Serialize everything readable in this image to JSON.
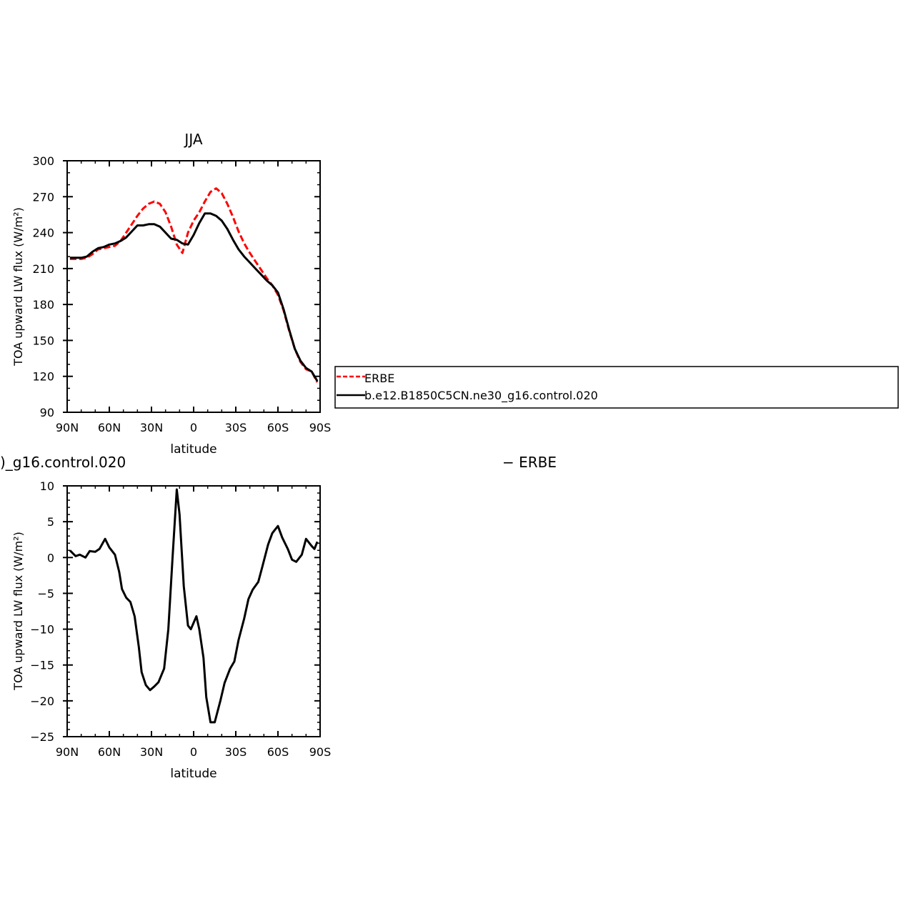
{
  "chart_data": [
    {
      "type": "line",
      "title": "JJA",
      "xlabel": "latitude",
      "ylabel": "TOA upward LW flux (W/m²)",
      "xlim": [
        -90,
        90
      ],
      "ylim": [
        90,
        300
      ],
      "xticks": [
        {
          "value": -90,
          "label": "90N"
        },
        {
          "value": -60,
          "label": "60N"
        },
        {
          "value": -30,
          "label": "30N"
        },
        {
          "value": 0,
          "label": "0"
        },
        {
          "value": 30,
          "label": "30S"
        },
        {
          "value": 60,
          "label": "60S"
        },
        {
          "value": 90,
          "label": "90S"
        }
      ],
      "yticks": [
        90,
        120,
        150,
        180,
        210,
        240,
        270,
        300
      ],
      "legend": {
        "placement": "right, outside plot",
        "entries": [
          "ERBE",
          "b.e12.B1850C5CN.ne30_g16.control.020"
        ]
      },
      "series": [
        {
          "name": "ERBE",
          "color": "#ff0000",
          "style": "dashed",
          "x": [
            -88,
            -84,
            -80,
            -76,
            -72,
            -68,
            -64,
            -60,
            -56,
            -52,
            -48,
            -44,
            -40,
            -36,
            -32,
            -28,
            -24,
            -20,
            -16,
            -12,
            -8,
            -4,
            0,
            4,
            8,
            12,
            16,
            20,
            24,
            28,
            32,
            36,
            40,
            44,
            48,
            52,
            56,
            60,
            64,
            68,
            72,
            76,
            80,
            84,
            88
          ],
          "values": [
            218,
            218,
            218,
            219,
            222,
            226,
            227,
            228,
            229,
            233,
            240,
            247,
            254,
            260,
            264,
            266,
            264,
            257,
            245,
            230,
            223,
            240,
            250,
            257,
            266,
            274,
            277,
            273,
            264,
            253,
            241,
            231,
            223,
            216,
            209,
            202,
            196,
            188,
            175,
            158,
            143,
            132,
            126,
            124,
            115
          ]
        },
        {
          "name": "b.e12.B1850C5CN.ne30_g16.control.020",
          "color": "#000000",
          "style": "solid",
          "x": [
            -88,
            -84,
            -80,
            -76,
            -72,
            -68,
            -64,
            -60,
            -56,
            -52,
            -48,
            -44,
            -40,
            -36,
            -32,
            -28,
            -24,
            -20,
            -16,
            -12,
            -8,
            -4,
            0,
            4,
            8,
            12,
            16,
            20,
            24,
            28,
            32,
            36,
            40,
            44,
            48,
            52,
            56,
            60,
            64,
            68,
            72,
            76,
            80,
            84,
            88
          ],
          "values": [
            219,
            219,
            219,
            220,
            224,
            227,
            228,
            230,
            231,
            233,
            236,
            241,
            246,
            246,
            247,
            247,
            245,
            240,
            235,
            234,
            231,
            230,
            238,
            248,
            256,
            256,
            254,
            250,
            243,
            234,
            226,
            220,
            215,
            210,
            205,
            200,
            196,
            190,
            176,
            159,
            143,
            133,
            127,
            124,
            116
          ]
        }
      ]
    },
    {
      "type": "line",
      "title_left": ")_g16.control.020",
      "title_right": "− ERBE",
      "xlabel": "latitude",
      "ylabel": "TOA upward LW flux (W/m²)",
      "xlim": [
        -90,
        90
      ],
      "ylim": [
        -25,
        10
      ],
      "xticks": [
        {
          "value": -90,
          "label": "90N"
        },
        {
          "value": -60,
          "label": "60N"
        },
        {
          "value": -30,
          "label": "30N"
        },
        {
          "value": 0,
          "label": "0"
        },
        {
          "value": 30,
          "label": "30S"
        },
        {
          "value": 60,
          "label": "60S"
        },
        {
          "value": 90,
          "label": "90S"
        }
      ],
      "yticks": [
        -25,
        -20,
        -15,
        -10,
        -5,
        0,
        5,
        10
      ],
      "series": [
        {
          "color": "#000000",
          "style": "solid",
          "x": [
            -88,
            -84,
            -81,
            -77,
            -74,
            -70,
            -67,
            -63,
            -60,
            -56,
            -53,
            -51,
            -48,
            -45,
            -42,
            -39,
            -37,
            -34,
            -31,
            -28,
            -25,
            -21,
            -18,
            -15,
            -12,
            -10,
            -7,
            -4,
            -2,
            2,
            4,
            7,
            9,
            12,
            15,
            19,
            22,
            26,
            29,
            32,
            36,
            39,
            42,
            46,
            49,
            53,
            56,
            60,
            63,
            67,
            70,
            73,
            77,
            80,
            84,
            86,
            88
          ],
          "values": [
            1.0,
            0.2,
            0.4,
            0.0,
            0.9,
            0.8,
            1.2,
            2.6,
            1.4,
            0.4,
            -2.0,
            -4.4,
            -5.6,
            -6.2,
            -8.2,
            -12.5,
            -16.0,
            -17.8,
            -18.5,
            -18.0,
            -17.4,
            -15.5,
            -10.0,
            0.0,
            9.5,
            6.0,
            -4.0,
            -9.5,
            -10.0,
            -8.2,
            -10.0,
            -14.0,
            -19.5,
            -23.0,
            -23.0,
            -20.0,
            -17.5,
            -15.5,
            -14.5,
            -11.5,
            -8.5,
            -5.8,
            -4.5,
            -3.4,
            -1.2,
            1.8,
            3.4,
            4.4,
            2.8,
            1.2,
            -0.3,
            -0.6,
            0.4,
            2.6,
            1.6,
            1.2,
            2.2
          ]
        }
      ]
    }
  ]
}
